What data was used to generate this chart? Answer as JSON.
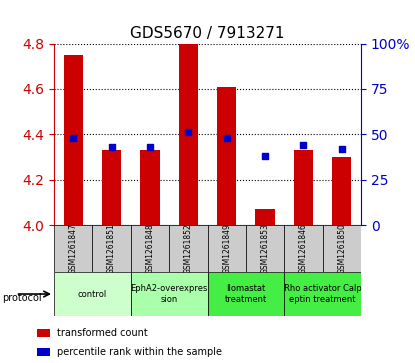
{
  "title": "GDS5670 / 7913271",
  "samples": [
    "GSM1261847",
    "GSM1261851",
    "GSM1261848",
    "GSM1261852",
    "GSM1261849",
    "GSM1261853",
    "GSM1261846",
    "GSM1261850"
  ],
  "transformed_counts": [
    4.75,
    4.33,
    4.33,
    4.8,
    4.61,
    4.07,
    4.33,
    4.3
  ],
  "percentile_ranks": [
    48,
    43,
    43,
    51,
    48,
    38,
    44,
    42
  ],
  "ylim_left": [
    4.0,
    4.8
  ],
  "ylim_right": [
    0,
    100
  ],
  "yticks_left": [
    4.0,
    4.2,
    4.4,
    4.6,
    4.8
  ],
  "yticks_right": [
    0,
    25,
    50,
    75,
    100
  ],
  "ytick_labels_right": [
    "0",
    "25",
    "50",
    "75",
    "100%"
  ],
  "bar_color": "#cc0000",
  "dot_color": "#0000cc",
  "bar_width": 0.5,
  "protocol_label": "protocol",
  "legend_items": [
    {
      "color": "#cc0000",
      "label": "transformed count"
    },
    {
      "color": "#0000cc",
      "label": "percentile rank within the sample"
    }
  ],
  "bg_color": "#ffffff",
  "sample_box_color": "#cccccc",
  "left_axis_color": "#cc0000",
  "right_axis_color": "#0000cc",
  "title_fontsize": 11,
  "protocol_groups": [
    {
      "label": "control",
      "start": 0,
      "end": 1,
      "color": "#ccffcc"
    },
    {
      "label": "EphA2-overexpres\nsion",
      "start": 2,
      "end": 3,
      "color": "#aaffaa"
    },
    {
      "label": "Ilomastat\ntreatment",
      "start": 4,
      "end": 5,
      "color": "#44ee44"
    },
    {
      "label": "Rho activator Calp\neptin treatment",
      "start": 6,
      "end": 7,
      "color": "#44ee44"
    }
  ]
}
